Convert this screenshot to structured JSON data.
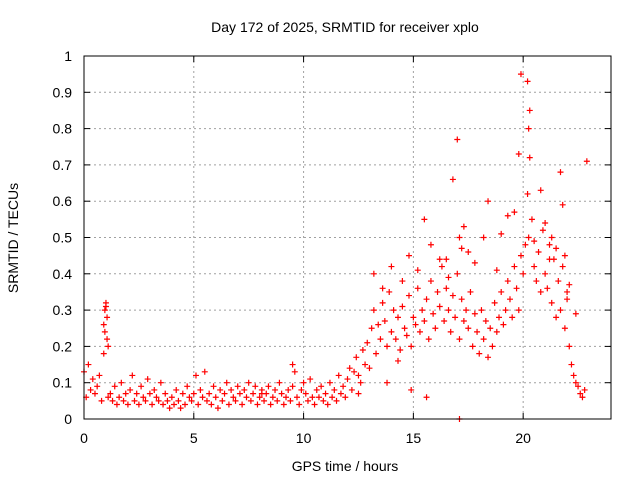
{
  "chart_data": {
    "type": "scatter",
    "title": "Day 172 of 2025, SRMTID for receiver xplo",
    "xlabel": "GPS time / hours",
    "ylabel": "SRMTID / TECUs",
    "xlim": [
      0,
      24
    ],
    "ylim": [
      0,
      1
    ],
    "xticks": [
      0,
      5,
      10,
      15,
      20
    ],
    "xtick_labels": [
      "0",
      "5",
      "10",
      "15",
      "20"
    ],
    "yticks": [
      0,
      0.1,
      0.2,
      0.3,
      0.4,
      0.5,
      0.6,
      0.7,
      0.8,
      0.9,
      1
    ],
    "ytick_labels": [
      "0",
      "0.1",
      "0.2",
      "0.3",
      "0.4",
      "0.5",
      "0.6",
      "0.7",
      "0.8",
      "0.9",
      "1"
    ],
    "grid": true,
    "marker": "+",
    "color": "#ff0000",
    "series": [
      {
        "name": "SRMTID",
        "x": [
          0.0,
          0.1,
          0.2,
          0.3,
          0.4,
          0.5,
          0.6,
          0.7,
          0.8,
          0.9,
          0.95,
          1.0,
          1.05,
          1.1,
          1.2,
          1.3,
          1.4,
          1.5,
          1.6,
          1.7,
          1.8,
          1.9,
          2.0,
          2.1,
          2.2,
          2.3,
          2.4,
          2.5,
          2.6,
          2.7,
          2.8,
          2.9,
          3.0,
          3.1,
          3.2,
          3.3,
          3.4,
          3.5,
          3.6,
          3.7,
          3.8,
          3.9,
          4.0,
          4.1,
          4.2,
          4.3,
          4.4,
          4.5,
          4.6,
          4.7,
          4.8,
          4.9,
          5.0,
          5.1,
          5.2,
          5.3,
          5.4,
          5.5,
          5.6,
          5.7,
          5.8,
          5.9,
          6.0,
          6.1,
          6.2,
          6.3,
          6.4,
          6.5,
          6.6,
          6.7,
          6.8,
          6.9,
          7.0,
          7.1,
          7.2,
          7.3,
          7.4,
          7.5,
          7.6,
          7.7,
          7.8,
          7.9,
          8.0,
          8.1,
          8.2,
          8.3,
          8.4,
          8.5,
          8.6,
          8.7,
          8.8,
          8.9,
          9.0,
          9.1,
          9.2,
          9.3,
          9.4,
          9.5,
          9.6,
          9.7,
          9.8,
          9.9,
          10.0,
          10.1,
          10.2,
          10.3,
          10.4,
          10.5,
          10.6,
          10.7,
          10.8,
          10.9,
          11.0,
          11.1,
          11.2,
          11.3,
          11.4,
          11.5,
          11.6,
          11.7,
          11.8,
          11.9,
          12.0,
          12.1,
          12.2,
          12.3,
          12.4,
          12.5,
          12.6,
          12.7,
          12.8,
          12.9,
          13.0,
          13.1,
          13.2,
          13.3,
          13.4,
          13.5,
          13.6,
          13.7,
          13.8,
          13.9,
          14.0,
          14.1,
          14.2,
          14.3,
          14.4,
          14.5,
          14.6,
          14.7,
          14.8,
          14.9,
          15.0,
          15.1,
          15.2,
          15.3,
          15.4,
          15.5,
          15.6,
          15.7,
          15.8,
          15.9,
          16.0,
          16.1,
          16.2,
          16.3,
          16.4,
          16.5,
          16.6,
          16.7,
          16.8,
          16.9,
          17.0,
          17.1,
          17.2,
          17.3,
          17.4,
          17.5,
          17.6,
          17.7,
          17.8,
          17.9,
          18.0,
          18.1,
          18.2,
          18.3,
          18.4,
          18.5,
          18.6,
          18.7,
          18.8,
          18.9,
          19.0,
          19.1,
          19.2,
          19.3,
          19.4,
          19.5,
          19.6,
          19.7,
          19.8,
          19.9,
          20.0,
          20.1,
          20.2,
          20.25,
          20.3,
          20.4,
          20.5,
          20.6,
          20.7,
          20.8,
          20.9,
          21.0,
          21.1,
          21.2,
          21.3,
          21.4,
          21.5,
          21.6,
          21.7,
          21.8,
          21.9,
          22.0,
          22.1,
          22.2,
          22.3,
          22.4,
          22.5,
          22.6,
          22.7,
          22.8,
          22.9,
          16.8,
          17.0,
          19.8,
          19.9,
          20.2,
          20.25,
          20.3,
          21.7,
          21.8,
          15.5,
          16.5,
          17.1,
          17.2,
          17.3,
          18.4,
          19.0,
          19.6,
          20.8,
          21.0,
          21.3,
          21.5,
          21.9,
          22.0,
          13.2,
          13.6,
          14.0,
          14.5,
          14.8,
          15.2,
          15.8,
          16.2,
          16.6,
          17.5,
          17.8,
          18.2,
          18.8,
          19.3,
          20.5,
          21.2,
          22.1,
          22.4,
          0.9,
          0.95,
          1.0,
          1.05,
          1.1,
          8.1,
          9.5,
          12.5,
          13.8,
          14.3,
          14.9,
          15.6
        ],
        "y": [
          0.13,
          0.06,
          0.15,
          0.08,
          0.11,
          0.07,
          0.09,
          0.12,
          0.05,
          0.18,
          0.3,
          0.32,
          0.22,
          0.2,
          0.07,
          0.05,
          0.09,
          0.04,
          0.06,
          0.1,
          0.05,
          0.07,
          0.04,
          0.08,
          0.12,
          0.05,
          0.07,
          0.04,
          0.09,
          0.06,
          0.05,
          0.11,
          0.07,
          0.04,
          0.08,
          0.06,
          0.05,
          0.1,
          0.04,
          0.07,
          0.05,
          0.03,
          0.06,
          0.04,
          0.08,
          0.05,
          0.03,
          0.07,
          0.04,
          0.09,
          0.06,
          0.05,
          0.07,
          0.12,
          0.04,
          0.08,
          0.06,
          0.13,
          0.05,
          0.07,
          0.04,
          0.09,
          0.06,
          0.03,
          0.08,
          0.05,
          0.07,
          0.1,
          0.04,
          0.08,
          0.06,
          0.05,
          0.09,
          0.07,
          0.04,
          0.08,
          0.06,
          0.1,
          0.05,
          0.07,
          0.09,
          0.04,
          0.06,
          0.08,
          0.05,
          0.07,
          0.09,
          0.04,
          0.06,
          0.08,
          0.05,
          0.1,
          0.07,
          0.04,
          0.06,
          0.08,
          0.05,
          0.09,
          0.13,
          0.06,
          0.04,
          0.08,
          0.1,
          0.07,
          0.05,
          0.11,
          0.06,
          0.04,
          0.08,
          0.06,
          0.09,
          0.05,
          0.07,
          0.04,
          0.1,
          0.06,
          0.08,
          0.05,
          0.12,
          0.07,
          0.09,
          0.06,
          0.11,
          0.14,
          0.08,
          0.13,
          0.17,
          0.12,
          0.1,
          0.19,
          0.15,
          0.21,
          0.14,
          0.25,
          0.3,
          0.18,
          0.26,
          0.22,
          0.32,
          0.27,
          0.2,
          0.35,
          0.24,
          0.3,
          0.22,
          0.28,
          0.19,
          0.31,
          0.25,
          0.23,
          0.34,
          0.2,
          0.28,
          0.26,
          0.36,
          0.24,
          0.3,
          0.27,
          0.33,
          0.22,
          0.38,
          0.29,
          0.25,
          0.35,
          0.31,
          0.42,
          0.27,
          0.36,
          0.3,
          0.24,
          0.34,
          0.28,
          0.4,
          0.22,
          0.33,
          0.27,
          0.3,
          0.25,
          0.35,
          0.2,
          0.29,
          0.24,
          0.18,
          0.3,
          0.22,
          0.27,
          0.17,
          0.25,
          0.2,
          0.32,
          0.24,
          0.28,
          0.35,
          0.26,
          0.3,
          0.38,
          0.33,
          0.28,
          0.42,
          0.36,
          0.3,
          0.45,
          0.4,
          0.48,
          0.62,
          0.5,
          0.85,
          0.55,
          0.42,
          0.38,
          0.46,
          0.35,
          0.52,
          0.4,
          0.36,
          0.48,
          0.32,
          0.44,
          0.28,
          0.38,
          0.3,
          0.42,
          0.25,
          0.35,
          0.2,
          0.15,
          0.12,
          0.1,
          0.09,
          0.07,
          0.06,
          0.08,
          0.71,
          0.66,
          0.77,
          0.73,
          0.95,
          0.93,
          0.8,
          0.72,
          0.68,
          0.59,
          0.55,
          0.44,
          0.5,
          0.47,
          0.53,
          0.6,
          0.51,
          0.57,
          0.63,
          0.54,
          0.5,
          0.47,
          0.45,
          0.33,
          0.4,
          0.36,
          0.42,
          0.38,
          0.45,
          0.41,
          0.48,
          0.44,
          0.39,
          0.46,
          0.43,
          0.5,
          0.41,
          0.56,
          0.49,
          0.44,
          0.37,
          0.29,
          0.26,
          0.24,
          0.31,
          0.28,
          0.06,
          0.07,
          0.15,
          0.07,
          0.1,
          0.16,
          0.08,
          0.06
        ],
        "extra_point": {
          "x": 17.1,
          "y": 0.0
        }
      }
    ]
  }
}
